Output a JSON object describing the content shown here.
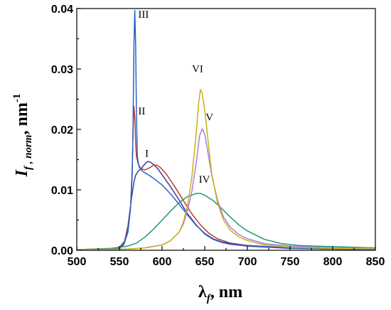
{
  "chart_data": {
    "type": "line",
    "title": "",
    "xlabel": "λ",
    "xlabel_sub": "f",
    "xlabel_unit": ", nm",
    "ylabel": "I",
    "ylabel_sub": "f , norm",
    "ylabel_unit": ", nm",
    "ylabel_sup": "-1",
    "xlim": [
      500,
      850
    ],
    "ylim": [
      0,
      0.04
    ],
    "x_ticks": [
      500,
      550,
      600,
      650,
      700,
      750,
      800,
      850
    ],
    "y_ticks": [
      0.0,
      0.01,
      0.02,
      0.03,
      0.04
    ],
    "y_tick_labels": [
      "0.00",
      "0.01",
      "0.02",
      "0.03",
      "0.04"
    ],
    "grid": false,
    "series": [
      {
        "name": "I",
        "color": "#3b3b9c",
        "label_at": [
          580,
          0.0155
        ],
        "points": [
          [
            500,
            0.0001
          ],
          [
            540,
            0.0002
          ],
          [
            550,
            0.0005
          ],
          [
            556,
            0.0015
          ],
          [
            560,
            0.004
          ],
          [
            564,
            0.0085
          ],
          [
            567,
            0.0113
          ],
          [
            569,
            0.0124
          ],
          [
            572,
            0.0131
          ],
          [
            576,
            0.0136
          ],
          [
            580,
            0.0143
          ],
          [
            583,
            0.0147
          ],
          [
            586,
            0.0146
          ],
          [
            590,
            0.0142
          ],
          [
            595,
            0.0135
          ],
          [
            600,
            0.0125
          ],
          [
            610,
            0.0105
          ],
          [
            620,
            0.0083
          ],
          [
            630,
            0.006
          ],
          [
            640,
            0.0042
          ],
          [
            650,
            0.0027
          ],
          [
            660,
            0.0018
          ],
          [
            670,
            0.0013
          ],
          [
            680,
            0.001
          ],
          [
            700,
            0.0007
          ],
          [
            750,
            0.0003
          ],
          [
            800,
            0.0002
          ],
          [
            850,
            0.0001
          ]
        ]
      },
      {
        "name": "II",
        "color": "#c0392b",
        "label_at": [
          572,
          0.0225
        ],
        "points": [
          [
            500,
            0.0001
          ],
          [
            550,
            0.0003
          ],
          [
            555,
            0.001
          ],
          [
            560,
            0.0035
          ],
          [
            563,
            0.007
          ],
          [
            565,
            0.0135
          ],
          [
            566,
            0.02
          ],
          [
            567,
            0.0238
          ],
          [
            568,
            0.022
          ],
          [
            569,
            0.0178
          ],
          [
            570,
            0.0155
          ],
          [
            572,
            0.0143
          ],
          [
            575,
            0.0135
          ],
          [
            580,
            0.0133
          ],
          [
            586,
            0.0137
          ],
          [
            590,
            0.0141
          ],
          [
            594,
            0.0141
          ],
          [
            598,
            0.0137
          ],
          [
            605,
            0.0126
          ],
          [
            615,
            0.0105
          ],
          [
            625,
            0.0082
          ],
          [
            635,
            0.006
          ],
          [
            645,
            0.0042
          ],
          [
            655,
            0.0028
          ],
          [
            665,
            0.0019
          ],
          [
            680,
            0.0012
          ],
          [
            700,
            0.0008
          ],
          [
            750,
            0.0004
          ],
          [
            800,
            0.0002
          ],
          [
            850,
            0.0001
          ]
        ]
      },
      {
        "name": "III",
        "color": "#2a62c8",
        "label_at": [
          572,
          0.0385
        ],
        "points": [
          [
            500,
            0.0001
          ],
          [
            550,
            0.0003
          ],
          [
            555,
            0.0009
          ],
          [
            560,
            0.003
          ],
          [
            563,
            0.007
          ],
          [
            565,
            0.0125
          ],
          [
            566,
            0.021
          ],
          [
            567,
            0.034
          ],
          [
            568,
            0.0397
          ],
          [
            569,
            0.034
          ],
          [
            570,
            0.022
          ],
          [
            571,
            0.0155
          ],
          [
            573,
            0.0138
          ],
          [
            576,
            0.0132
          ],
          [
            580,
            0.0128
          ],
          [
            585,
            0.0124
          ],
          [
            590,
            0.0119
          ],
          [
            600,
            0.0108
          ],
          [
            610,
            0.0093
          ],
          [
            620,
            0.0076
          ],
          [
            630,
            0.0058
          ],
          [
            640,
            0.0041
          ],
          [
            650,
            0.0028
          ],
          [
            660,
            0.0019
          ],
          [
            670,
            0.0014
          ],
          [
            690,
            0.0009
          ],
          [
            720,
            0.0006
          ],
          [
            760,
            0.0003
          ],
          [
            800,
            0.0002
          ],
          [
            850,
            0.0001
          ]
        ]
      },
      {
        "name": "IV",
        "color": "#1f9a72",
        "label_at": [
          643,
          0.0112
        ],
        "points": [
          [
            500,
            0.0001
          ],
          [
            540,
            0.0003
          ],
          [
            560,
            0.0007
          ],
          [
            570,
            0.0012
          ],
          [
            580,
            0.0022
          ],
          [
            590,
            0.0035
          ],
          [
            600,
            0.005
          ],
          [
            610,
            0.0065
          ],
          [
            620,
            0.0079
          ],
          [
            630,
            0.0089
          ],
          [
            640,
            0.0094
          ],
          [
            645,
            0.0094
          ],
          [
            650,
            0.0091
          ],
          [
            660,
            0.0082
          ],
          [
            670,
            0.0069
          ],
          [
            680,
            0.0055
          ],
          [
            690,
            0.0042
          ],
          [
            700,
            0.0032
          ],
          [
            720,
            0.0018
          ],
          [
            740,
            0.0011
          ],
          [
            760,
            0.0008
          ],
          [
            780,
            0.0007
          ],
          [
            800,
            0.0006
          ],
          [
            825,
            0.0005
          ],
          [
            850,
            0.0004
          ]
        ]
      },
      {
        "name": "V",
        "color": "#b07cdc",
        "label_at": [
          651,
          0.0215
        ],
        "points": [
          [
            500,
            0.0001
          ],
          [
            560,
            0.0002
          ],
          [
            580,
            0.0004
          ],
          [
            600,
            0.0009
          ],
          [
            610,
            0.0016
          ],
          [
            620,
            0.003
          ],
          [
            625,
            0.0044
          ],
          [
            630,
            0.0066
          ],
          [
            635,
            0.0098
          ],
          [
            640,
            0.0145
          ],
          [
            644,
            0.019
          ],
          [
            647,
            0.0201
          ],
          [
            650,
            0.0192
          ],
          [
            654,
            0.016
          ],
          [
            658,
            0.0125
          ],
          [
            665,
            0.0083
          ],
          [
            672,
            0.0055
          ],
          [
            680,
            0.0038
          ],
          [
            690,
            0.0026
          ],
          [
            700,
            0.0019
          ],
          [
            720,
            0.0011
          ],
          [
            750,
            0.0007
          ],
          [
            800,
            0.0004
          ],
          [
            850,
            0.0003
          ]
        ]
      },
      {
        "name": "VI",
        "color": "#c9b117",
        "label_at": [
          635,
          0.0295
        ],
        "points": [
          [
            500,
            0.0001
          ],
          [
            560,
            0.0002
          ],
          [
            580,
            0.0004
          ],
          [
            600,
            0.0009
          ],
          [
            610,
            0.0016
          ],
          [
            620,
            0.003
          ],
          [
            625,
            0.0047
          ],
          [
            630,
            0.0075
          ],
          [
            635,
            0.0122
          ],
          [
            640,
            0.0195
          ],
          [
            643,
            0.0245
          ],
          [
            645,
            0.0266
          ],
          [
            647,
            0.026
          ],
          [
            650,
            0.0232
          ],
          [
            654,
            0.018
          ],
          [
            658,
            0.0128
          ],
          [
            665,
            0.0078
          ],
          [
            672,
            0.005
          ],
          [
            680,
            0.0033
          ],
          [
            690,
            0.0022
          ],
          [
            700,
            0.0016
          ],
          [
            720,
            0.0009
          ],
          [
            750,
            0.0005
          ],
          [
            800,
            0.0003
          ],
          [
            850,
            0.0002
          ]
        ]
      }
    ]
  }
}
